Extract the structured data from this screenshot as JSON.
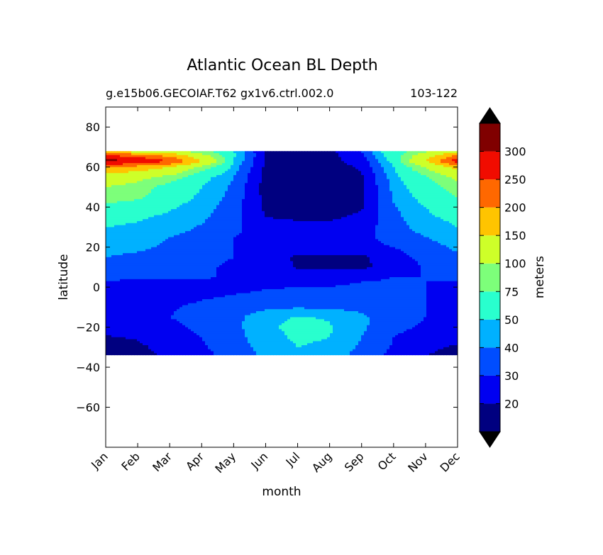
{
  "chart_data": {
    "type": "contour",
    "title": "Atlantic Ocean BL Depth",
    "subtitle_left": "g.e15b06.GECOIAF.T62 gx1v6.ctrl.002.0",
    "subtitle_right": "103-122",
    "xlabel": "month",
    "ylabel": "latitude",
    "x_ticks": [
      "Jan",
      "Feb",
      "Mar",
      "Apr",
      "May",
      "Jun",
      "Jul",
      "Aug",
      "Sep",
      "Oct",
      "Nov",
      "Dec"
    ],
    "y_ticks": [
      80,
      60,
      40,
      20,
      0,
      -20,
      -40,
      -60
    ],
    "y_tick_labels": [
      "80",
      "60",
      "40",
      "20",
      "0",
      "−20",
      "−40",
      "−60"
    ],
    "ylim": [
      -80,
      90
    ],
    "data_lat_range": [
      -34,
      68
    ],
    "colorbar": {
      "label": "meters",
      "levels": [
        10,
        20,
        30,
        40,
        50,
        75,
        100,
        150,
        200,
        250,
        300,
        350
      ],
      "tick_labels": [
        "20",
        "30",
        "40",
        "50",
        "75",
        "100",
        "150",
        "200",
        "250",
        "300"
      ],
      "colors": [
        "#000080",
        "#0000f1",
        "#004dff",
        "#00b1ff",
        "#29ffce",
        "#7dff7a",
        "#ceff29",
        "#ffc400",
        "#ff6800",
        "#f10c00",
        "#800000"
      ],
      "extend_min_color": "#000000",
      "extend_max_color": "#000000"
    },
    "latitudes": [
      -34,
      -30,
      -25,
      -20,
      -15,
      -10,
      -5,
      0,
      5,
      10,
      15,
      20,
      25,
      30,
      35,
      40,
      45,
      50,
      55,
      60,
      63,
      66,
      68
    ],
    "values_by_month": {
      "Jan": [
        16,
        17,
        19,
        25,
        28,
        27,
        25,
        25,
        33,
        36,
        40,
        43,
        46,
        50,
        55,
        65,
        90,
        100,
        120,
        200,
        320,
        250,
        140
      ],
      "Feb": [
        17,
        18,
        21,
        26,
        29,
        28,
        26,
        23,
        32,
        35,
        38,
        42,
        45,
        48,
        52,
        60,
        80,
        90,
        110,
        180,
        300,
        220,
        120
      ],
      "Mar": [
        22,
        24,
        26,
        28,
        30,
        29,
        27,
        24,
        32,
        34,
        36,
        38,
        40,
        44,
        47,
        52,
        56,
        62,
        90,
        150,
        250,
        180,
        110
      ],
      "Apr": [
        27,
        29,
        30,
        32,
        33,
        32,
        29,
        25,
        31,
        32,
        34,
        35,
        37,
        39,
        42,
        45,
        48,
        50,
        55,
        90,
        150,
        110,
        80
      ],
      "May": [
        34,
        35,
        36,
        37,
        37,
        34,
        31,
        27,
        29,
        28,
        30,
        30,
        30,
        32,
        33,
        34,
        36,
        38,
        40,
        45,
        50,
        52,
        50
      ],
      "Jun": [
        42,
        44,
        46,
        48,
        46,
        38,
        33,
        29,
        28,
        27,
        27,
        28,
        28,
        25,
        20,
        18,
        17,
        16,
        17,
        18,
        19,
        19,
        19
      ],
      "Jul": [
        46,
        50,
        52,
        53,
        51,
        39,
        34,
        30,
        27,
        19,
        18,
        28,
        27,
        24,
        18,
        16,
        15,
        15,
        15,
        16,
        17,
        17,
        18
      ],
      "Aug": [
        45,
        48,
        50,
        51,
        49,
        38,
        34,
        30,
        28,
        19,
        18,
        28,
        27,
        24,
        18,
        16,
        15,
        15,
        15,
        16,
        17,
        17,
        18
      ],
      "Sep": [
        36,
        38,
        40,
        42,
        42,
        37,
        33,
        31,
        29,
        18,
        18,
        28,
        28,
        26,
        22,
        19,
        18,
        18,
        19,
        21,
        24,
        27,
        30
      ],
      "Oct": [
        27,
        29,
        30,
        32,
        33,
        33,
        32,
        31,
        30,
        24,
        26,
        30,
        33,
        35,
        37,
        39,
        41,
        43,
        45,
        50,
        55,
        60,
        62
      ],
      "Nov": [
        20,
        22,
        26,
        29,
        30,
        30,
        30,
        30,
        30,
        31,
        33,
        36,
        40,
        45,
        48,
        50,
        55,
        60,
        70,
        100,
        150,
        120,
        90
      ],
      "Dec": [
        17,
        19,
        22,
        27,
        29,
        30,
        28,
        26,
        32,
        34,
        38,
        42,
        45,
        50,
        53,
        60,
        75,
        90,
        110,
        170,
        280,
        200,
        130
      ]
    },
    "grid": false
  }
}
